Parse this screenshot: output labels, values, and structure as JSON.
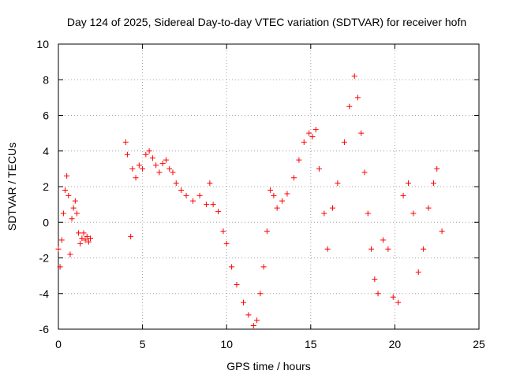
{
  "chart_data": {
    "type": "scatter",
    "title": "Day 124 of 2025, Sidereal Day-to-day VTEC variation (SDTVAR) for receiver hofn",
    "xlabel": "GPS time / hours",
    "ylabel": "SDTVAR / TECUs",
    "xlim": [
      0,
      25
    ],
    "ylim": [
      -6,
      10
    ],
    "xticks": [
      0,
      5,
      10,
      15,
      20,
      25
    ],
    "yticks": [
      -6,
      -4,
      -2,
      0,
      2,
      4,
      6,
      8,
      10
    ],
    "grid": true,
    "marker": "+",
    "color": "#ff0000",
    "series": [
      {
        "name": "SDTVAR",
        "x": [
          0.0,
          0.1,
          0.2,
          0.3,
          0.4,
          0.5,
          0.6,
          0.7,
          0.8,
          0.9,
          1.0,
          1.1,
          1.2,
          1.3,
          1.4,
          1.5,
          1.6,
          1.7,
          1.8,
          1.9,
          4.0,
          4.1,
          4.3,
          4.4,
          4.6,
          4.8,
          5.0,
          5.2,
          5.4,
          5.6,
          5.8,
          6.0,
          6.2,
          6.4,
          6.6,
          6.8,
          7.0,
          7.3,
          7.6,
          8.0,
          8.4,
          8.8,
          9.0,
          9.2,
          9.5,
          9.8,
          10.0,
          10.3,
          10.6,
          11.0,
          11.3,
          11.6,
          11.8,
          12.0,
          12.2,
          12.4,
          12.6,
          12.8,
          13.0,
          13.3,
          13.6,
          14.0,
          14.3,
          14.6,
          14.9,
          15.1,
          15.3,
          15.5,
          15.8,
          16.0,
          16.3,
          16.6,
          17.0,
          17.3,
          17.6,
          17.8,
          18.0,
          18.2,
          18.4,
          18.6,
          18.8,
          19.0,
          19.3,
          19.6,
          19.9,
          20.2,
          20.5,
          20.8,
          21.1,
          21.4,
          21.7,
          22.0,
          22.3,
          22.5,
          22.8
        ],
        "y": [
          -1.5,
          -2.5,
          -1.0,
          0.5,
          1.8,
          2.6,
          1.5,
          -1.8,
          0.2,
          0.8,
          1.2,
          0.5,
          -0.6,
          -1.2,
          -0.9,
          -0.6,
          -1.0,
          -0.8,
          -1.1,
          -0.9,
          4.5,
          3.8,
          -0.8,
          3.0,
          2.5,
          3.2,
          3.0,
          3.8,
          4.0,
          3.6,
          3.2,
          2.8,
          3.3,
          3.5,
          3.0,
          2.8,
          2.2,
          1.8,
          1.5,
          1.2,
          1.5,
          1.0,
          2.2,
          1.0,
          0.6,
          -0.5,
          -1.2,
          -2.5,
          -3.5,
          -4.5,
          -5.2,
          -5.8,
          -5.5,
          -4.0,
          -2.5,
          -0.5,
          1.8,
          1.5,
          0.8,
          1.2,
          1.6,
          2.5,
          3.5,
          4.5,
          5.0,
          4.8,
          5.2,
          3.0,
          0.5,
          -1.5,
          0.8,
          2.2,
          4.5,
          6.5,
          8.2,
          7.0,
          5.0,
          2.8,
          0.5,
          -1.5,
          -3.2,
          -4.0,
          -1.0,
          -1.5,
          -4.2,
          -4.5,
          1.5,
          2.2,
          0.5,
          -2.8,
          -1.5,
          0.8,
          2.2,
          3.0,
          -0.5
        ]
      }
    ]
  }
}
